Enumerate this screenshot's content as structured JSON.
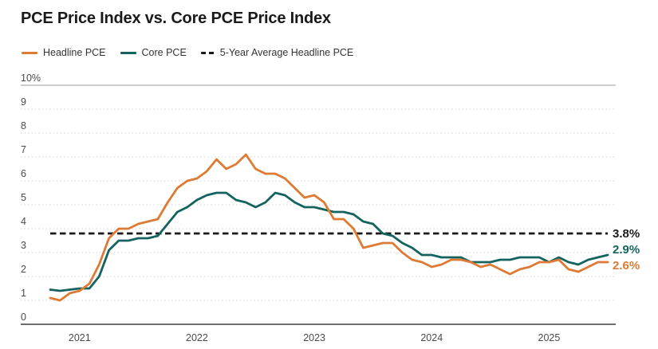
{
  "title": "PCE Price Index vs. Core PCE Price Index",
  "legend": [
    {
      "label": "Headline PCE",
      "color": "#DE7A33",
      "style": "solid"
    },
    {
      "label": "Core PCE",
      "color": "#14635F",
      "style": "solid"
    },
    {
      "label": "5-Year Average Headline PCE",
      "color": "#1a1a1a",
      "style": "dashed"
    }
  ],
  "colors": {
    "headline": "#DE7A33",
    "core": "#14635F",
    "average": "#1a1a1a",
    "axis_text": "#4a4a4a",
    "grid_dotted": "#d2d2d2",
    "grid_top": "#aeaeae",
    "axis_line": "#3f3f3f"
  },
  "chart_data": {
    "type": "line",
    "title": "PCE Price Index vs. Core PCE Price Index",
    "xlabel": "",
    "ylabel": "",
    "ylim": [
      0,
      10
    ],
    "grid": "horizontal-dotted",
    "legend_position": "top-left",
    "y_tick_labels_top_to_bottom": [
      "10%",
      "9",
      "8",
      "7",
      "6",
      "5",
      "4",
      "3",
      "2",
      "1",
      "0"
    ],
    "x_tick_labels": [
      "2021",
      "2022",
      "2023",
      "2024",
      "2025"
    ],
    "x_months": [
      "2020-10",
      "2020-11",
      "2020-12",
      "2021-01",
      "2021-02",
      "2021-03",
      "2021-04",
      "2021-05",
      "2021-06",
      "2021-07",
      "2021-08",
      "2021-09",
      "2021-10",
      "2021-11",
      "2021-12",
      "2022-01",
      "2022-02",
      "2022-03",
      "2022-04",
      "2022-05",
      "2022-06",
      "2022-07",
      "2022-08",
      "2022-09",
      "2022-10",
      "2022-11",
      "2022-12",
      "2023-01",
      "2023-02",
      "2023-03",
      "2023-04",
      "2023-05",
      "2023-06",
      "2023-07",
      "2023-08",
      "2023-09",
      "2023-10",
      "2023-11",
      "2023-12",
      "2024-01",
      "2024-02",
      "2024-03",
      "2024-04",
      "2024-05",
      "2024-06",
      "2024-07",
      "2024-08",
      "2024-09",
      "2024-10",
      "2024-11",
      "2024-12",
      "2025-01",
      "2025-02",
      "2025-03",
      "2025-04",
      "2025-05",
      "2025-06",
      "2025-07"
    ],
    "series": [
      {
        "name": "Headline PCE",
        "color": "#DE7A33",
        "end_label": "2.6%",
        "values": [
          1.1,
          1.0,
          1.3,
          1.4,
          1.7,
          2.5,
          3.6,
          4.0,
          4.0,
          4.2,
          4.3,
          4.4,
          5.1,
          5.7,
          6.0,
          6.1,
          6.4,
          6.9,
          6.5,
          6.7,
          7.1,
          6.5,
          6.3,
          6.3,
          6.1,
          5.7,
          5.3,
          5.4,
          5.1,
          4.4,
          4.4,
          4.0,
          3.2,
          3.3,
          3.4,
          3.4,
          3.0,
          2.7,
          2.6,
          2.4,
          2.5,
          2.7,
          2.7,
          2.6,
          2.4,
          2.5,
          2.3,
          2.1,
          2.3,
          2.4,
          2.6,
          2.6,
          2.7,
          2.3,
          2.2,
          2.4,
          2.6,
          2.6
        ]
      },
      {
        "name": "Core PCE",
        "color": "#14635F",
        "end_label": "2.9%",
        "values": [
          1.45,
          1.4,
          1.45,
          1.5,
          1.5,
          2.0,
          3.1,
          3.5,
          3.5,
          3.6,
          3.6,
          3.7,
          4.2,
          4.7,
          4.9,
          5.2,
          5.4,
          5.5,
          5.5,
          5.2,
          5.1,
          4.9,
          5.1,
          5.5,
          5.4,
          5.1,
          4.9,
          4.9,
          4.8,
          4.7,
          4.7,
          4.6,
          4.3,
          4.2,
          3.8,
          3.7,
          3.4,
          3.2,
          2.9,
          2.9,
          2.8,
          2.8,
          2.8,
          2.6,
          2.6,
          2.6,
          2.7,
          2.7,
          2.8,
          2.8,
          2.8,
          2.6,
          2.8,
          2.6,
          2.5,
          2.7,
          2.8,
          2.9
        ]
      }
    ],
    "reference_line": {
      "name": "5-Year Average Headline PCE",
      "value": 3.8,
      "end_label": "3.8%",
      "color": "#1a1a1a",
      "style": "dashed"
    }
  }
}
